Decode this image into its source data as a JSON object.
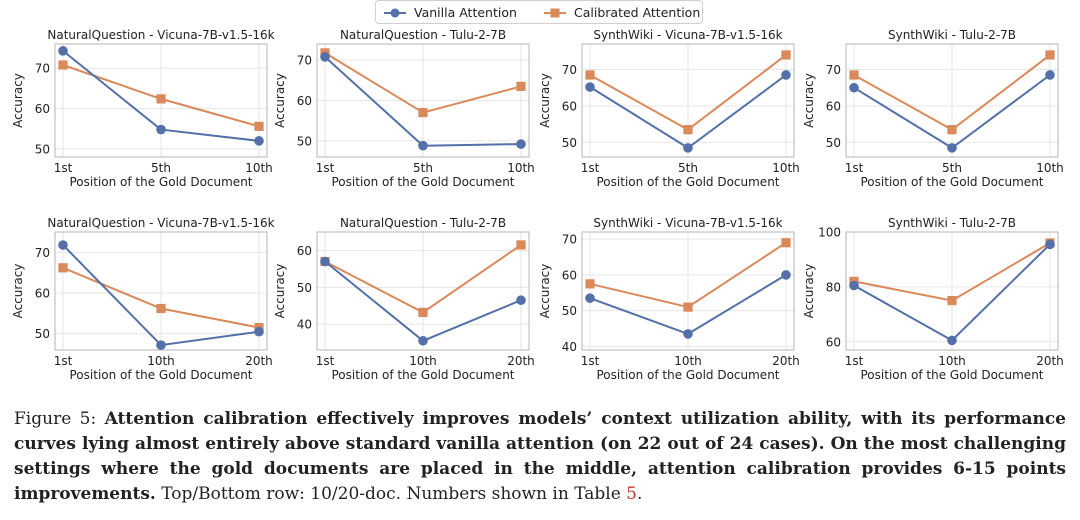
{
  "legend": {
    "vanilla_label": "Vanilla Attention",
    "calibrated_label": "Calibrated Attention",
    "vanilla_color": "#5470a8",
    "calibrated_color": "#d9895a"
  },
  "caption": {
    "figure_label": "Figure 5:",
    "bold_text": "Attention calibration effectively improves models’ context utilization ability, with its performance curves lying almost entirely above standard vanilla attention (on 22 out of 24 cases). On the most challenging settings where the gold documents are placed in the middle, attention calibration provides 6-15 points improvements.",
    "normal_text": "Top/Bottom row: 10/20-doc. Numbers shown in Table",
    "table_ref": "5",
    "end": "."
  },
  "chart_data": [
    {
      "type": "line",
      "title": "NaturalQuestion - Vicuna-7B-v1.5-16k",
      "xlabel": "Position of the Gold Document",
      "ylabel": "Accuracy",
      "categories": [
        "1st",
        "5th",
        "10th"
      ],
      "yticks": [
        50,
        60,
        70
      ],
      "ylim": [
        48,
        76
      ],
      "series": [
        {
          "name": "Vanilla Attention",
          "values": [
            74.3,
            54.8,
            52.0
          ]
        },
        {
          "name": "Calibrated Attention",
          "values": [
            70.8,
            62.4,
            55.6
          ]
        }
      ]
    },
    {
      "type": "line",
      "title": "NaturalQuestion - Tulu-2-7B",
      "xlabel": "Position of the Gold Document",
      "ylabel": "Accuracy",
      "categories": [
        "1st",
        "5th",
        "10th"
      ],
      "yticks": [
        50,
        60,
        70
      ],
      "ylim": [
        46,
        74
      ],
      "series": [
        {
          "name": "Vanilla Attention",
          "values": [
            70.8,
            48.8,
            49.2
          ]
        },
        {
          "name": "Calibrated Attention",
          "values": [
            71.8,
            57.0,
            63.5
          ]
        }
      ]
    },
    {
      "type": "line",
      "title": "SynthWiki - Vicuna-7B-v1.5-16k",
      "xlabel": "Position of the Gold Document",
      "ylabel": "Accuracy",
      "categories": [
        "1st",
        "5th",
        "10th"
      ],
      "yticks": [
        50,
        60,
        70
      ],
      "ylim": [
        46,
        77
      ],
      "series": [
        {
          "name": "Vanilla Attention",
          "values": [
            65.2,
            48.5,
            68.5
          ]
        },
        {
          "name": "Calibrated Attention",
          "values": [
            68.5,
            53.5,
            74.0
          ]
        }
      ]
    },
    {
      "type": "line",
      "title": "SynthWiki - Tulu-2-7B",
      "xlabel": "Position of the Gold Document",
      "ylabel": "Accuracy",
      "categories": [
        "1st",
        "5th",
        "10th"
      ],
      "yticks": [
        50,
        60,
        70
      ],
      "ylim": [
        46,
        77
      ],
      "series": [
        {
          "name": "Vanilla Attention",
          "values": [
            65.0,
            48.5,
            68.5
          ]
        },
        {
          "name": "Calibrated Attention",
          "values": [
            68.5,
            53.5,
            74.0
          ]
        }
      ]
    },
    {
      "type": "line",
      "title": "NaturalQuestion - Vicuna-7B-v1.5-16k",
      "xlabel": "Position of the Gold Document",
      "ylabel": "Accuracy",
      "categories": [
        "1st",
        "10th",
        "20th"
      ],
      "yticks": [
        50,
        60,
        70
      ],
      "ylim": [
        46,
        75
      ],
      "series": [
        {
          "name": "Vanilla Attention",
          "values": [
            71.8,
            47.2,
            50.5
          ]
        },
        {
          "name": "Calibrated Attention",
          "values": [
            66.2,
            56.2,
            51.5
          ]
        }
      ]
    },
    {
      "type": "line",
      "title": "NaturalQuestion - Tulu-2-7B",
      "xlabel": "Position of the Gold Document",
      "ylabel": "Accuracy",
      "categories": [
        "1st",
        "10th",
        "20th"
      ],
      "yticks": [
        40,
        50,
        60
      ],
      "ylim": [
        33,
        65
      ],
      "series": [
        {
          "name": "Vanilla Attention",
          "values": [
            57.0,
            35.5,
            46.5
          ]
        },
        {
          "name": "Calibrated Attention",
          "values": [
            57.0,
            43.2,
            61.5
          ]
        }
      ]
    },
    {
      "type": "line",
      "title": "SynthWiki - Vicuna-7B-v1.5-16k",
      "xlabel": "Position of the Gold Document",
      "ylabel": "Accuracy",
      "categories": [
        "1st",
        "10th",
        "20th"
      ],
      "yticks": [
        40,
        50,
        60,
        70
      ],
      "ylim": [
        39,
        72
      ],
      "series": [
        {
          "name": "Vanilla Attention",
          "values": [
            53.5,
            43.5,
            60.0
          ]
        },
        {
          "name": "Calibrated Attention",
          "values": [
            57.5,
            51.0,
            69.0
          ]
        }
      ]
    },
    {
      "type": "line",
      "title": "SynthWiki - Tulu-2-7B",
      "xlabel": "Position of the Gold Document",
      "ylabel": "Accuracy",
      "categories": [
        "1st",
        "10th",
        "20th"
      ],
      "yticks": [
        60,
        80,
        100
      ],
      "ylim": [
        57,
        100
      ],
      "series": [
        {
          "name": "Vanilla Attention",
          "values": [
            80.5,
            60.5,
            95.5
          ]
        },
        {
          "name": "Calibrated Attention",
          "values": [
            82.0,
            75.0,
            96.0
          ]
        }
      ]
    }
  ]
}
